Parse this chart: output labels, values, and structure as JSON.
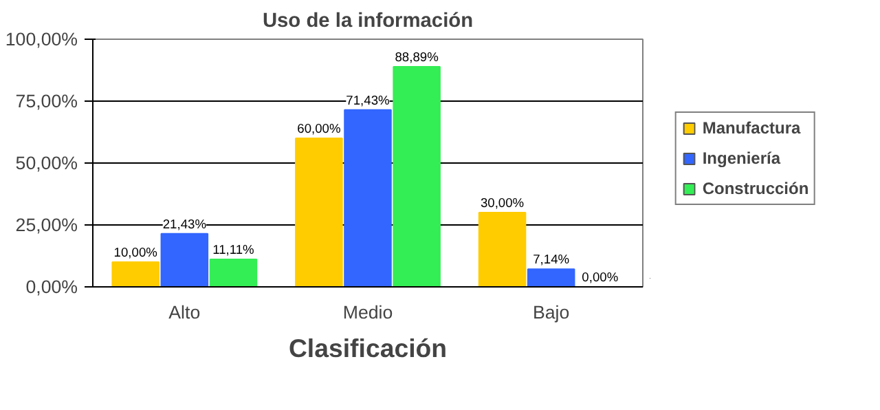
{
  "chart_data": {
    "type": "bar",
    "title": "Uso de la información",
    "xlabel": "Clasificación",
    "categories": [
      "Alto",
      "Medio",
      "Bajo"
    ],
    "series": [
      {
        "name": "Manufactura",
        "color": "#ffcc00",
        "values": [
          10,
          60,
          30
        ],
        "value_labels": [
          "10,00%",
          "60,00%",
          "30,00%"
        ]
      },
      {
        "name": "Ingeniería",
        "color": "#3366ff",
        "values": [
          21.43,
          71.43,
          7.14
        ],
        "value_labels": [
          "21,43%",
          "71,43%",
          "7,14%"
        ]
      },
      {
        "name": "Construcción",
        "color": "#33ee55",
        "values": [
          11.11,
          88.89,
          0
        ],
        "value_labels": [
          "11,11%",
          "88,89%",
          "0,00%"
        ]
      }
    ],
    "ylim": [
      0,
      100
    ],
    "yticks": [
      {
        "value": 0,
        "label": "0,00%"
      },
      {
        "value": 25,
        "label": "25,00%"
      },
      {
        "value": 50,
        "label": "50,00%"
      },
      {
        "value": 75,
        "label": "75,00%"
      },
      {
        "value": 100,
        "label": "100,00%"
      }
    ],
    "grid": "y",
    "legend": "right"
  }
}
